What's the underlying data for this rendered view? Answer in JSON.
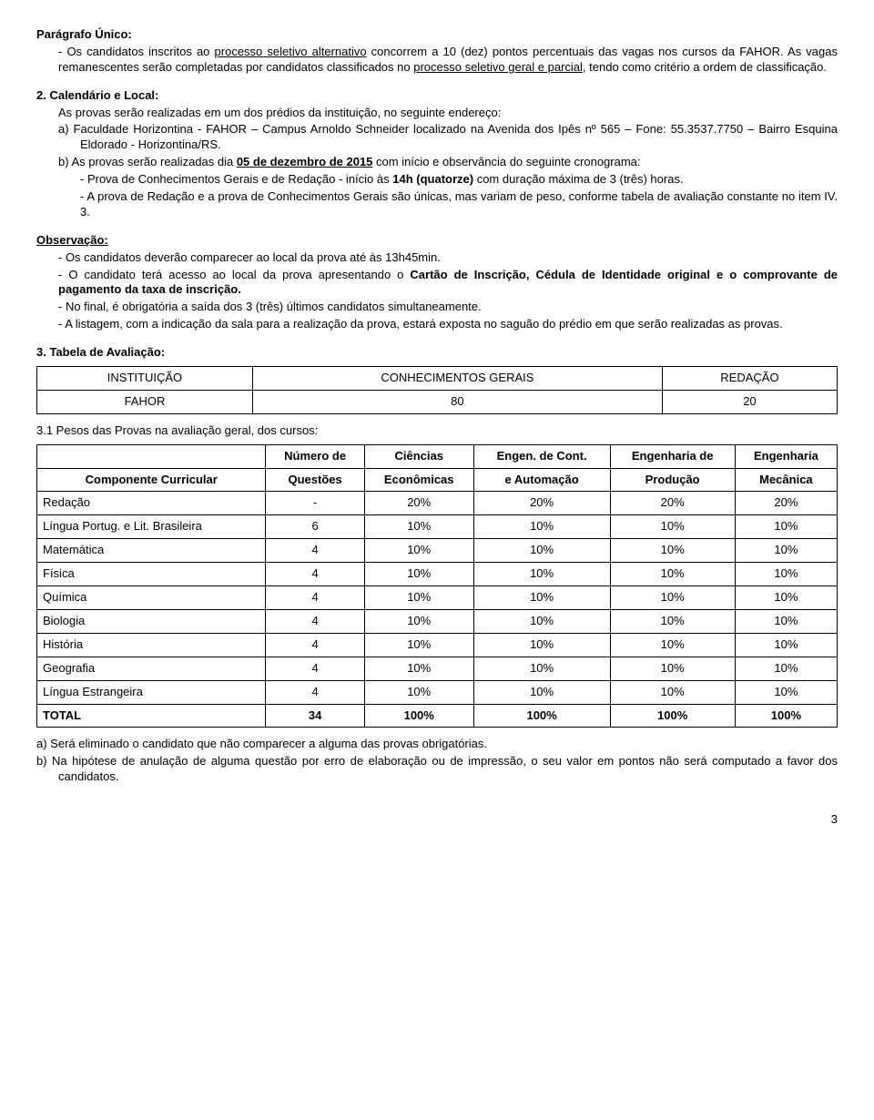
{
  "para_unico": {
    "heading": "Parágrafo Único:",
    "p1_a": "- Os candidatos inscritos ao ",
    "p1_b": "processo seletivo alternativo",
    "p1_c": " concorrem a 10 (dez) pontos percentuais das vagas nos cursos da FAHOR. As vagas remanescentes serão completadas por candidatos classificados no ",
    "p1_d": "processo seletivo geral e parcial",
    "p1_e": ", tendo como critério a ordem de classificação."
  },
  "calendario": {
    "heading": "2. Calendário e Local:",
    "intro": "As provas serão realizadas em um dos prédios da instituição, no seguinte endereço:",
    "a": "a)  Faculdade Horizontina - FAHOR – Campus Arnoldo Schneider localizado na Avenida dos Ipês nº 565 – Fone: 55.3537.7750 – Bairro Esquina Eldorado - Horizontina/RS.",
    "b_a": "b)  As provas serão realizadas dia ",
    "b_b": "05 de dezembro de 2015",
    "b_c": " com início e observância do seguinte cronograma:",
    "b1_a": "- Prova de Conhecimentos Gerais e de Redação - início às ",
    "b1_b": "14h (quatorze)",
    "b1_c": " com duração máxima de 3 (três) horas.",
    "b2": "- A prova de Redação e a prova de Conhecimentos Gerais são únicas, mas variam de peso, conforme tabela de avaliação constante no item IV. 3."
  },
  "obs": {
    "heading": "Observação:",
    "l1": "- Os candidatos deverão comparecer ao local da prova até às 13h45min.",
    "l2_a": "- O candidato terá acesso ao local da prova apresentando o ",
    "l2_b": "Cartão de Inscrição, Cédula de Identidade original e o comprovante de pagamento da taxa de inscrição.",
    "l3": "- No final, é obrigatória a saída dos 3 (três) últimos candidatos simultaneamente.",
    "l4": "- A listagem, com a indicação da sala para a realização da prova, estará exposta no saguão do prédio em que serão realizadas as provas."
  },
  "table1": {
    "heading": "3. Tabela de Avaliação:",
    "headers": [
      "INSTITUIÇÃO",
      "CONHECIMENTOS GERAIS",
      "REDAÇÃO"
    ],
    "row": [
      "FAHOR",
      "80",
      "20"
    ]
  },
  "pesos_heading": "3.1 Pesos das Provas na avaliação geral, dos cursos:",
  "table2": {
    "head_row1": [
      "",
      "Número de",
      "Ciências",
      "Engen. de Cont.",
      "Engenharia de",
      "Engenharia"
    ],
    "head_row2": [
      "Componente Curricular",
      "Questões",
      "Econômicas",
      "e Automação",
      "Produção",
      "Mecânica"
    ],
    "rows": [
      [
        "Redação",
        "-",
        "20%",
        "20%",
        "20%",
        "20%"
      ],
      [
        "Língua Portug. e Lit. Brasileira",
        "6",
        "10%",
        "10%",
        "10%",
        "10%"
      ],
      [
        "Matemática",
        "4",
        "10%",
        "10%",
        "10%",
        "10%"
      ],
      [
        "Física",
        "4",
        "10%",
        "10%",
        "10%",
        "10%"
      ],
      [
        "Química",
        "4",
        "10%",
        "10%",
        "10%",
        "10%"
      ],
      [
        "Biologia",
        "4",
        "10%",
        "10%",
        "10%",
        "10%"
      ],
      [
        "História",
        "4",
        "10%",
        "10%",
        "10%",
        "10%"
      ],
      [
        "Geografia",
        "4",
        "10%",
        "10%",
        "10%",
        "10%"
      ],
      [
        "Língua Estrangeira",
        "4",
        "10%",
        "10%",
        "10%",
        "10%"
      ],
      [
        "TOTAL",
        "34",
        "100%",
        "100%",
        "100%",
        "100%"
      ]
    ]
  },
  "footer": {
    "a": "a)   Será eliminado o candidato que não comparecer a alguma das provas obrigatórias.",
    "b": "b)   Na hipótese de anulação de alguma questão por erro de elaboração ou de impressão, o seu valor em pontos não será computado a favor dos candidatos."
  },
  "page": "3"
}
